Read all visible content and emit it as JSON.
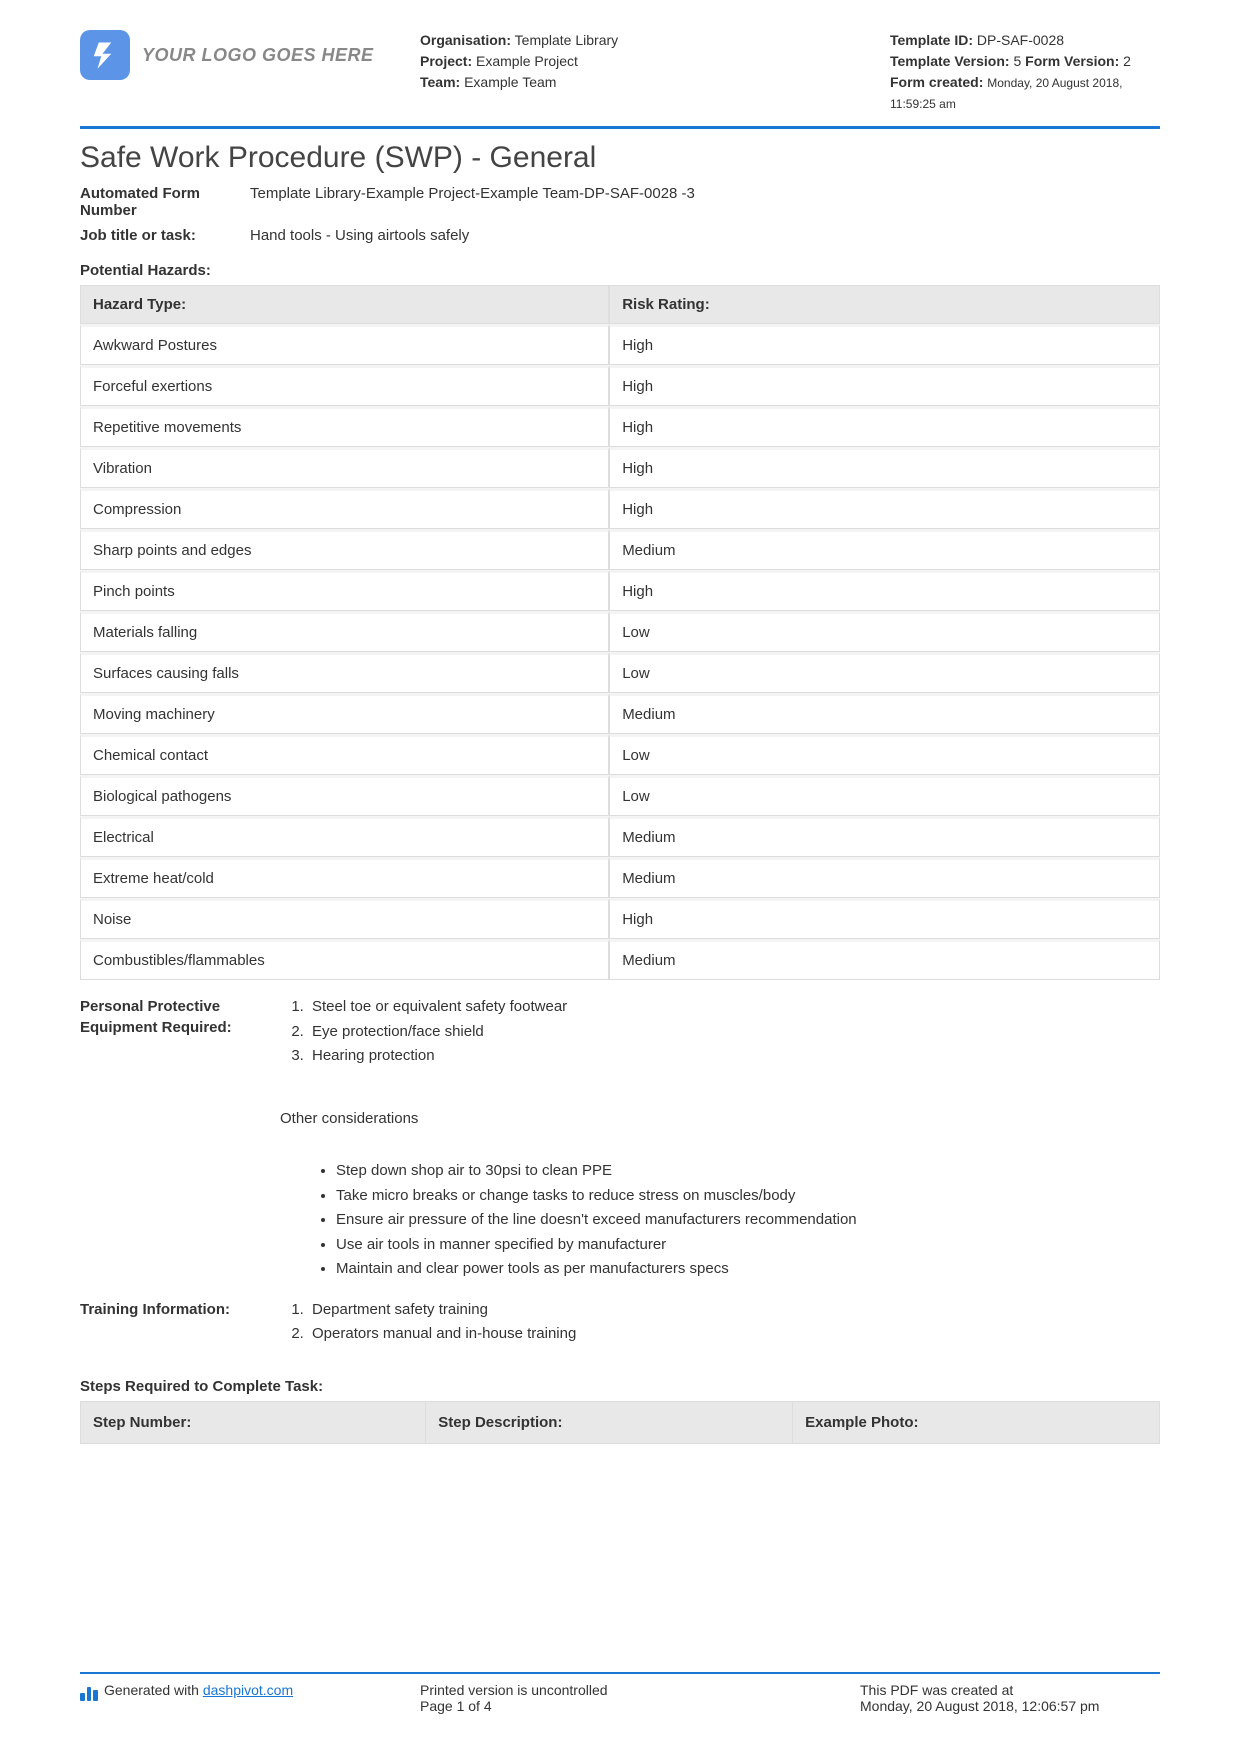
{
  "header": {
    "logo_text": "YOUR LOGO GOES HERE",
    "org_label": "Organisation:",
    "org_value": "Template Library",
    "project_label": "Project:",
    "project_value": "Example Project",
    "team_label": "Team:",
    "team_value": "Example Team",
    "template_id_label": "Template ID:",
    "template_id_value": "DP-SAF-0028",
    "template_version_label": "Template Version:",
    "template_version_value": "5",
    "form_version_label": "Form Version:",
    "form_version_value": "2",
    "form_created_label": "Form created:",
    "form_created_value": "Monday, 20 August 2018, 11:59:25 am"
  },
  "title": "Safe Work Procedure (SWP) - General",
  "form_number_label": "Automated Form Number",
  "form_number_value": "Template Library-Example Project-Example Team-DP-SAF-0028   -3",
  "job_title_label": "Job title or task:",
  "job_title_value": "Hand tools - Using airtools safely",
  "hazards_title": "Potential Hazards:",
  "hazards_columns": {
    "type": "Hazard Type:",
    "rating": "Risk Rating:"
  },
  "hazards_rows": [
    {
      "type": "Awkward Postures",
      "rating": "High"
    },
    {
      "type": "Forceful exertions",
      "rating": "High"
    },
    {
      "type": "Repetitive movements",
      "rating": "High"
    },
    {
      "type": "Vibration",
      "rating": "High"
    },
    {
      "type": "Compression",
      "rating": "High"
    },
    {
      "type": "Sharp points and edges",
      "rating": "Medium"
    },
    {
      "type": "Pinch points",
      "rating": "High"
    },
    {
      "type": "Materials falling",
      "rating": "Low"
    },
    {
      "type": "Surfaces causing falls",
      "rating": "Low"
    },
    {
      "type": "Moving machinery",
      "rating": "Medium"
    },
    {
      "type": "Chemical contact",
      "rating": "Low"
    },
    {
      "type": "Biological pathogens",
      "rating": "Low"
    },
    {
      "type": "Electrical",
      "rating": "Medium"
    },
    {
      "type": "Extreme heat/cold",
      "rating": "Medium"
    },
    {
      "type": "Noise",
      "rating": "High"
    },
    {
      "type": "Combustibles/flammables",
      "rating": "Medium"
    }
  ],
  "ppe_label": "Personal Protective Equipment Required:",
  "ppe_items": [
    "Steel toe or equivalent safety footwear",
    "Eye protection/face shield",
    "Hearing protection"
  ],
  "other_title": "Other considerations",
  "other_items": [
    "Step down shop air to 30psi to clean PPE",
    "Take micro breaks or change tasks to reduce stress on muscles/body",
    "Ensure air pressure of the line doesn't exceed manufacturers recommendation",
    "Use air tools in manner specified by manufacturer",
    "Maintain and clear power tools as per manufacturers specs"
  ],
  "training_label": "Training Information:",
  "training_items": [
    "Department safety training",
    "Operators manual and in-house training"
  ],
  "steps_title": "Steps Required to Complete Task:",
  "steps_columns": {
    "num": "Step Number:",
    "desc": "Step Description:",
    "photo": "Example Photo:"
  },
  "footer": {
    "generated_prefix": "Generated with ",
    "generated_link": "dashpivot.com",
    "uncontrolled": "Printed version is uncontrolled",
    "page": "Page 1 of 4",
    "created_label": "This PDF was created at",
    "created_value": "Monday, 20 August 2018, 12:06:57 pm"
  },
  "colors": {
    "accent": "#1976d2",
    "logo_bg": "#5c94e8",
    "row_header_bg": "#e8e8e8",
    "border": "#dddddd"
  }
}
